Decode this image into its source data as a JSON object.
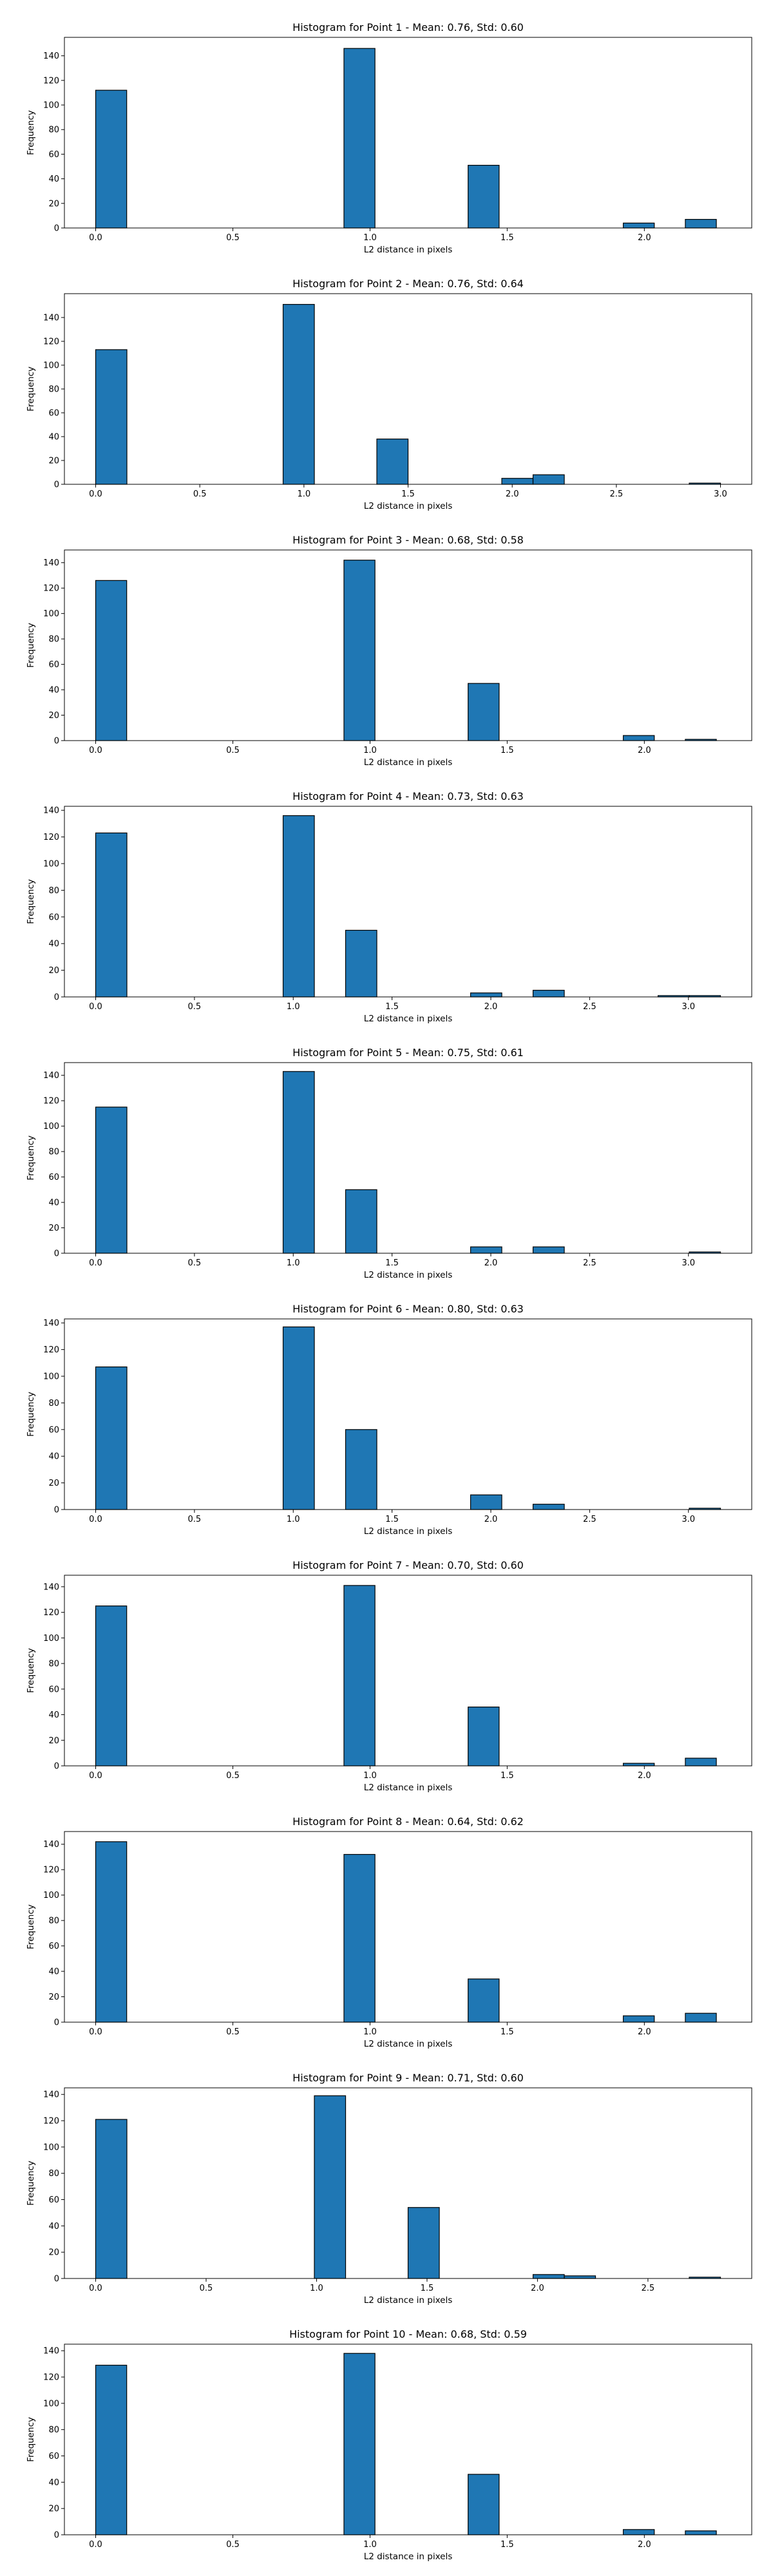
{
  "chart_data": [
    {
      "type": "bar",
      "title": "Histogram for Point 1 - Mean: 0.76, Std: 0.60",
      "xlabel": "L2 distance in pixels",
      "ylabel": "Frequency",
      "xlim": [
        -0.1139,
        2.3914
      ],
      "ylim": [
        0,
        155
      ],
      "xticks": [
        0.0,
        0.5,
        1.0,
        1.5,
        2.0
      ],
      "xtick_labels": [
        "0.0",
        "0.5",
        "1.0",
        "1.5",
        "2.0"
      ],
      "yticks": [
        0,
        20,
        40,
        60,
        80,
        100,
        120,
        140
      ],
      "ytick_labels": [
        "0",
        "20",
        "40",
        "60",
        "80",
        "100",
        "120",
        "140"
      ],
      "bins": [
        {
          "start": 0.0,
          "end": 0.1131,
          "count": 112
        },
        {
          "start": 0.905,
          "end": 1.0181,
          "count": 146
        },
        {
          "start": 1.3575,
          "end": 1.4706,
          "count": 51
        },
        {
          "start": 1.9231,
          "end": 2.0362,
          "count": 4
        },
        {
          "start": 2.1493,
          "end": 2.2624,
          "count": 7
        }
      ]
    },
    {
      "type": "bar",
      "title": "Histogram for Point 2 - Mean: 0.76, Std: 0.64",
      "xlabel": "L2 distance in pixels",
      "ylabel": "Frequency",
      "xlim": [
        -0.15,
        3.15
      ],
      "ylim": [
        0,
        160
      ],
      "xticks": [
        0.0,
        0.5,
        1.0,
        1.5,
        2.0,
        2.5,
        3.0
      ],
      "xtick_labels": [
        "0.0",
        "0.5",
        "1.0",
        "1.5",
        "2.0",
        "2.5",
        "3.0"
      ],
      "yticks": [
        0,
        20,
        40,
        60,
        80,
        100,
        120,
        140
      ],
      "ytick_labels": [
        "0",
        "20",
        "40",
        "60",
        "80",
        "100",
        "120",
        "140"
      ],
      "bins": [
        {
          "start": 0.0,
          "end": 0.15,
          "count": 113
        },
        {
          "start": 0.9,
          "end": 1.05,
          "count": 151
        },
        {
          "start": 1.35,
          "end": 1.5,
          "count": 38
        },
        {
          "start": 1.95,
          "end": 2.1,
          "count": 5
        },
        {
          "start": 2.1,
          "end": 2.25,
          "count": 8
        },
        {
          "start": 2.85,
          "end": 3.0,
          "count": 1
        }
      ]
    },
    {
      "type": "bar",
      "title": "Histogram for Point 3 - Mean: 0.68, Std: 0.58",
      "xlabel": "L2 distance in pixels",
      "ylabel": "Frequency",
      "xlim": [
        -0.1139,
        2.3914
      ],
      "ylim": [
        0,
        150
      ],
      "xticks": [
        0.0,
        0.5,
        1.0,
        1.5,
        2.0
      ],
      "xtick_labels": [
        "0.0",
        "0.5",
        "1.0",
        "1.5",
        "2.0"
      ],
      "yticks": [
        0,
        20,
        40,
        60,
        80,
        100,
        120,
        140
      ],
      "ytick_labels": [
        "0",
        "20",
        "40",
        "60",
        "80",
        "100",
        "120",
        "140"
      ],
      "bins": [
        {
          "start": 0.0,
          "end": 0.1131,
          "count": 126
        },
        {
          "start": 0.905,
          "end": 1.0181,
          "count": 142
        },
        {
          "start": 1.3575,
          "end": 1.4706,
          "count": 45
        },
        {
          "start": 1.9231,
          "end": 2.0362,
          "count": 4
        },
        {
          "start": 2.1493,
          "end": 2.2624,
          "count": 1
        }
      ]
    },
    {
      "type": "bar",
      "title": "Histogram for Point 4 - Mean: 0.73, Std: 0.63",
      "xlabel": "L2 distance in pixels",
      "ylabel": "Frequency",
      "xlim": [
        -0.1581,
        3.3204
      ],
      "ylim": [
        0,
        143
      ],
      "xticks": [
        0.0,
        0.5,
        1.0,
        1.5,
        2.0,
        2.5,
        3.0
      ],
      "xtick_labels": [
        "0.0",
        "0.5",
        "1.0",
        "1.5",
        "2.0",
        "2.5",
        "3.0"
      ],
      "yticks": [
        0,
        20,
        40,
        60,
        80,
        100,
        120,
        140
      ],
      "ytick_labels": [
        "0",
        "20",
        "40",
        "60",
        "80",
        "100",
        "120",
        "140"
      ],
      "bins": [
        {
          "start": 0.0,
          "end": 0.1581,
          "count": 123
        },
        {
          "start": 0.9487,
          "end": 1.1068,
          "count": 136
        },
        {
          "start": 1.2649,
          "end": 1.423,
          "count": 50
        },
        {
          "start": 1.8974,
          "end": 2.0555,
          "count": 3
        },
        {
          "start": 2.2136,
          "end": 2.3717,
          "count": 5
        },
        {
          "start": 2.8461,
          "end": 3.0042,
          "count": 1
        },
        {
          "start": 3.0042,
          "end": 3.1623,
          "count": 1
        }
      ]
    },
    {
      "type": "bar",
      "title": "Histogram for Point 5 - Mean: 0.75, Std: 0.61",
      "xlabel": "L2 distance in pixels",
      "ylabel": "Frequency",
      "xlim": [
        -0.1581,
        3.3204
      ],
      "ylim": [
        0,
        150
      ],
      "xticks": [
        0.0,
        0.5,
        1.0,
        1.5,
        2.0,
        2.5,
        3.0
      ],
      "xtick_labels": [
        "0.0",
        "0.5",
        "1.0",
        "1.5",
        "2.0",
        "2.5",
        "3.0"
      ],
      "yticks": [
        0,
        20,
        40,
        60,
        80,
        100,
        120,
        140
      ],
      "ytick_labels": [
        "0",
        "20",
        "40",
        "60",
        "80",
        "100",
        "120",
        "140"
      ],
      "bins": [
        {
          "start": 0.0,
          "end": 0.1581,
          "count": 115
        },
        {
          "start": 0.9487,
          "end": 1.1068,
          "count": 143
        },
        {
          "start": 1.2649,
          "end": 1.423,
          "count": 50
        },
        {
          "start": 1.8974,
          "end": 2.0555,
          "count": 5
        },
        {
          "start": 2.2136,
          "end": 2.3717,
          "count": 5
        },
        {
          "start": 3.0042,
          "end": 3.1623,
          "count": 1
        }
      ]
    },
    {
      "type": "bar",
      "title": "Histogram for Point 6 - Mean: 0.80, Std: 0.63",
      "xlabel": "L2 distance in pixels",
      "ylabel": "Frequency",
      "xlim": [
        -0.1581,
        3.3204
      ],
      "ylim": [
        0,
        143
      ],
      "xticks": [
        0.0,
        0.5,
        1.0,
        1.5,
        2.0,
        2.5,
        3.0
      ],
      "xtick_labels": [
        "0.0",
        "0.5",
        "1.0",
        "1.5",
        "2.0",
        "2.5",
        "3.0"
      ],
      "yticks": [
        0,
        20,
        40,
        60,
        80,
        100,
        120,
        140
      ],
      "ytick_labels": [
        "0",
        "20",
        "40",
        "60",
        "80",
        "100",
        "120",
        "140"
      ],
      "bins": [
        {
          "start": 0.0,
          "end": 0.1581,
          "count": 107
        },
        {
          "start": 0.9487,
          "end": 1.1068,
          "count": 137
        },
        {
          "start": 1.2649,
          "end": 1.423,
          "count": 60
        },
        {
          "start": 1.8974,
          "end": 2.0555,
          "count": 11
        },
        {
          "start": 2.2136,
          "end": 2.3717,
          "count": 4
        },
        {
          "start": 3.0042,
          "end": 3.1623,
          "count": 1
        }
      ]
    },
    {
      "type": "bar",
      "title": "Histogram for Point 7 - Mean: 0.70, Std: 0.60",
      "xlabel": "L2 distance in pixels",
      "ylabel": "Frequency",
      "xlim": [
        -0.1139,
        2.3914
      ],
      "ylim": [
        0,
        149
      ],
      "xticks": [
        0.0,
        0.5,
        1.0,
        1.5,
        2.0
      ],
      "xtick_labels": [
        "0.0",
        "0.5",
        "1.0",
        "1.5",
        "2.0"
      ],
      "yticks": [
        0,
        20,
        40,
        60,
        80,
        100,
        120,
        140
      ],
      "ytick_labels": [
        "0",
        "20",
        "40",
        "60",
        "80",
        "100",
        "120",
        "140"
      ],
      "bins": [
        {
          "start": 0.0,
          "end": 0.1131,
          "count": 125
        },
        {
          "start": 0.905,
          "end": 1.0181,
          "count": 141
        },
        {
          "start": 1.3575,
          "end": 1.4706,
          "count": 46
        },
        {
          "start": 1.9231,
          "end": 2.0362,
          "count": 2
        },
        {
          "start": 2.1493,
          "end": 2.2624,
          "count": 6
        }
      ]
    },
    {
      "type": "bar",
      "title": "Histogram for Point 8 - Mean: 0.64, Std: 0.62",
      "xlabel": "L2 distance in pixels",
      "ylabel": "Frequency",
      "xlim": [
        -0.1139,
        2.3914
      ],
      "ylim": [
        0,
        150
      ],
      "xticks": [
        0.0,
        0.5,
        1.0,
        1.5,
        2.0
      ],
      "xtick_labels": [
        "0.0",
        "0.5",
        "1.0",
        "1.5",
        "2.0"
      ],
      "yticks": [
        0,
        20,
        40,
        60,
        80,
        100,
        120,
        140
      ],
      "ytick_labels": [
        "0",
        "20",
        "40",
        "60",
        "80",
        "100",
        "120",
        "140"
      ],
      "bins": [
        {
          "start": 0.0,
          "end": 0.1131,
          "count": 142
        },
        {
          "start": 0.905,
          "end": 1.0181,
          "count": 132
        },
        {
          "start": 1.3575,
          "end": 1.4706,
          "count": 34
        },
        {
          "start": 1.9231,
          "end": 2.0362,
          "count": 5
        },
        {
          "start": 2.1493,
          "end": 2.2624,
          "count": 7
        }
      ]
    },
    {
      "type": "bar",
      "title": "Histogram for Point 9 - Mean: 0.71, Std: 0.60",
      "xlabel": "L2 distance in pixels",
      "ylabel": "Frequency",
      "xlim": [
        -0.1414,
        2.9698
      ],
      "ylim": [
        0,
        145
      ],
      "xticks": [
        0.0,
        0.5,
        1.0,
        1.5,
        2.0,
        2.5
      ],
      "xtick_labels": [
        "0.0",
        "0.5",
        "1.0",
        "1.5",
        "2.0",
        "2.5"
      ],
      "yticks": [
        0,
        20,
        40,
        60,
        80,
        100,
        120,
        140
      ],
      "ytick_labels": [
        "0",
        "20",
        "40",
        "60",
        "80",
        "100",
        "120",
        "140"
      ],
      "bins": [
        {
          "start": 0.0,
          "end": 0.1414,
          "count": 121
        },
        {
          "start": 0.9899,
          "end": 1.1314,
          "count": 139
        },
        {
          "start": 1.4142,
          "end": 1.5556,
          "count": 54
        },
        {
          "start": 1.9799,
          "end": 2.1213,
          "count": 3
        },
        {
          "start": 2.1213,
          "end": 2.2627,
          "count": 2
        },
        {
          "start": 2.687,
          "end": 2.8284,
          "count": 1
        }
      ]
    },
    {
      "type": "bar",
      "title": "Histogram for Point 10 - Mean: 0.68, Std: 0.59",
      "xlabel": "L2 distance in pixels",
      "ylabel": "Frequency",
      "xlim": [
        -0.1139,
        2.3914
      ],
      "ylim": [
        0,
        145
      ],
      "xticks": [
        0.0,
        0.5,
        1.0,
        1.5,
        2.0
      ],
      "xtick_labels": [
        "0.0",
        "0.5",
        "1.0",
        "1.5",
        "2.0"
      ],
      "yticks": [
        0,
        20,
        40,
        60,
        80,
        100,
        120,
        140
      ],
      "ytick_labels": [
        "0",
        "20",
        "40",
        "60",
        "80",
        "100",
        "120",
        "140"
      ],
      "bins": [
        {
          "start": 0.0,
          "end": 0.1131,
          "count": 129
        },
        {
          "start": 0.905,
          "end": 1.0181,
          "count": 138
        },
        {
          "start": 1.3575,
          "end": 1.4706,
          "count": 46
        },
        {
          "start": 1.9231,
          "end": 2.0362,
          "count": 4
        },
        {
          "start": 2.1493,
          "end": 2.2624,
          "count": 3
        }
      ]
    }
  ],
  "colors": {
    "bar_fill": "#1f77b4",
    "bar_edge": "#000000",
    "axes": "#000000",
    "background": "#ffffff"
  }
}
